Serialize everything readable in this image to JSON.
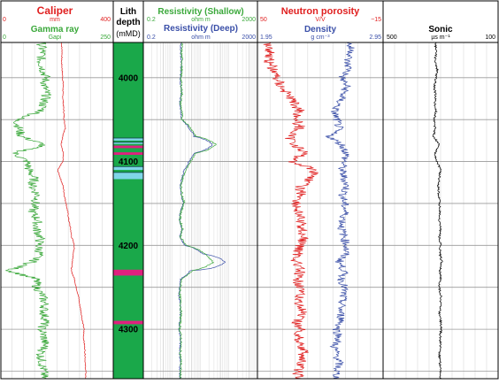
{
  "chart_data": {
    "type": "line",
    "depth_axis": {
      "label_line1": "Lith",
      "label_line2": "depth",
      "unit": "(mMD)",
      "ticks": [
        4000,
        4100,
        4200,
        4300
      ],
      "range": [
        3958,
        4359
      ]
    },
    "tracks": [
      {
        "id": "caliper_gamma",
        "headers": [
          {
            "name": "Caliper",
            "unit": "mm",
            "min": "0",
            "max": "400",
            "color": "#e02020"
          },
          {
            "name": "Gamma ray",
            "unit": "Gapi",
            "min": "0",
            "max": "250",
            "color": "#3aa83a"
          }
        ]
      },
      {
        "id": "resistivity",
        "scale": "log",
        "headers": [
          {
            "name": "Resistivity (Shallow)",
            "unit": "ohm m",
            "min": "0.2",
            "max": "2000",
            "color": "#3aa83a"
          },
          {
            "name": "Resistivity (Deep)",
            "unit": "ohm m",
            "min": "0.2",
            "max": "2000",
            "color": "#3a4fa8"
          }
        ]
      },
      {
        "id": "porosity_density",
        "headers": [
          {
            "name": "Neutron porosity",
            "unit": "V/V",
            "min": "50",
            "max": "−15",
            "color": "#e02020"
          },
          {
            "name": "Density",
            "unit": "g cm⁻³",
            "min": "1.95",
            "max": "2.95",
            "color": "#3a4fa8"
          }
        ]
      },
      {
        "id": "sonic",
        "headers": [
          {
            "name": "Sonic",
            "unit": "µs m⁻¹",
            "min": "500",
            "max": "100",
            "color": "#000000"
          }
        ]
      }
    ],
    "lithology": {
      "base_color": "#1aa84a",
      "beds": [
        {
          "top": 4072,
          "base": 4075,
          "color": "#7fd6e8"
        },
        {
          "top": 4077,
          "base": 4079,
          "color": "#7fd6e8"
        },
        {
          "top": 4081,
          "base": 4084,
          "color": "#e0207f"
        },
        {
          "top": 4089,
          "base": 4092,
          "color": "#e0207f"
        },
        {
          "top": 4106,
          "base": 4110,
          "color": "#7fd6e8"
        },
        {
          "top": 4113,
          "base": 4121,
          "color": "#7fd6e8"
        },
        {
          "top": 4229,
          "base": 4236,
          "color": "#e0207f"
        },
        {
          "top": 4290,
          "base": 4294,
          "color": "#e0207f"
        }
      ]
    },
    "curves": {
      "depths": [
        3960,
        3970,
        3980,
        3990,
        4000,
        4010,
        4020,
        4030,
        4040,
        4050,
        4060,
        4070,
        4080,
        4090,
        4100,
        4110,
        4120,
        4130,
        4140,
        4150,
        4160,
        4170,
        4180,
        4190,
        4200,
        4210,
        4220,
        4230,
        4240,
        4250,
        4260,
        4270,
        4280,
        4290,
        4300,
        4310,
        4320,
        4330,
        4340,
        4350
      ],
      "caliper_mm": [
        216,
        218,
        216,
        218,
        220,
        222,
        220,
        222,
        224,
        225,
        230,
        220,
        215,
        222,
        220,
        202,
        212,
        222,
        226,
        232,
        238,
        242,
        248,
        252,
        262,
        258,
        255,
        250,
        262,
        268,
        276,
        280,
        286,
        290,
        296,
        294,
        298,
        300,
        300,
        302
      ],
      "gamma_gapi": [
        90,
        92,
        88,
        94,
        100,
        96,
        102,
        95,
        90,
        35,
        40,
        45,
        96,
        30,
        58,
        62,
        74,
        70,
        82,
        76,
        70,
        82,
        78,
        88,
        84,
        86,
        70,
        18,
        78,
        80,
        92,
        98,
        95,
        100,
        90,
        96,
        98,
        88,
        92,
        95
      ],
      "res_shallow_ohmm": [
        4.5,
        4.3,
        4.6,
        4.4,
        4.2,
        4.3,
        4.5,
        4.0,
        4.4,
        4.6,
        9,
        14,
        70,
        14,
        9,
        6,
        4.8,
        4.2,
        4.6,
        5.4,
        4.2,
        3.8,
        4.8,
        4.0,
        6,
        28,
        55,
        10,
        4.3,
        4.0,
        3.8,
        4.1,
        4.2,
        4.0,
        3.8,
        4.2,
        4.1,
        4.0,
        4.2,
        4.0
      ],
      "res_deep_ohmm": [
        4.2,
        4.1,
        4.3,
        4.2,
        4.0,
        4.1,
        4.3,
        3.8,
        4.2,
        4.4,
        8,
        12,
        55,
        12,
        8,
        5.5,
        4.5,
        4.0,
        4.3,
        5.0,
        4.0,
        3.7,
        4.5,
        3.8,
        5.5,
        24,
        150,
        9,
        4.1,
        3.8,
        3.6,
        3.9,
        4.0,
        3.8,
        3.6,
        4.0,
        3.9,
        3.8,
        4.0,
        3.8
      ],
      "neutron_vv": [
        44,
        43,
        44,
        42,
        40,
        38,
        34,
        31,
        28,
        30,
        28,
        34,
        30,
        26,
        32,
        20,
        22,
        28,
        27,
        30,
        29,
        28,
        27,
        26,
        28,
        29,
        30,
        28,
        30,
        27,
        29,
        28,
        27,
        30,
        28,
        29,
        27,
        26,
        28,
        29
      ],
      "density_gcm3": [
        2.68,
        2.7,
        2.66,
        2.68,
        2.62,
        2.66,
        2.63,
        2.6,
        2.56,
        2.58,
        2.6,
        2.52,
        2.62,
        2.66,
        2.64,
        2.62,
        2.64,
        2.66,
        2.63,
        2.64,
        2.65,
        2.63,
        2.62,
        2.64,
        2.66,
        2.65,
        2.6,
        2.64,
        2.62,
        2.64,
        2.63,
        2.62,
        2.61,
        2.62,
        2.58,
        2.6,
        2.56,
        2.58,
        2.6,
        2.58
      ],
      "sonic_usm": [
        318,
        315,
        320,
        312,
        316,
        322,
        318,
        320,
        316,
        322,
        320,
        324,
        305,
        320,
        312,
        300,
        305,
        308,
        306,
        304,
        302,
        306,
        300,
        305,
        300,
        303,
        296,
        302,
        300,
        306,
        298,
        300,
        304,
        300,
        298,
        302,
        300,
        304,
        302,
        300
      ]
    }
  }
}
